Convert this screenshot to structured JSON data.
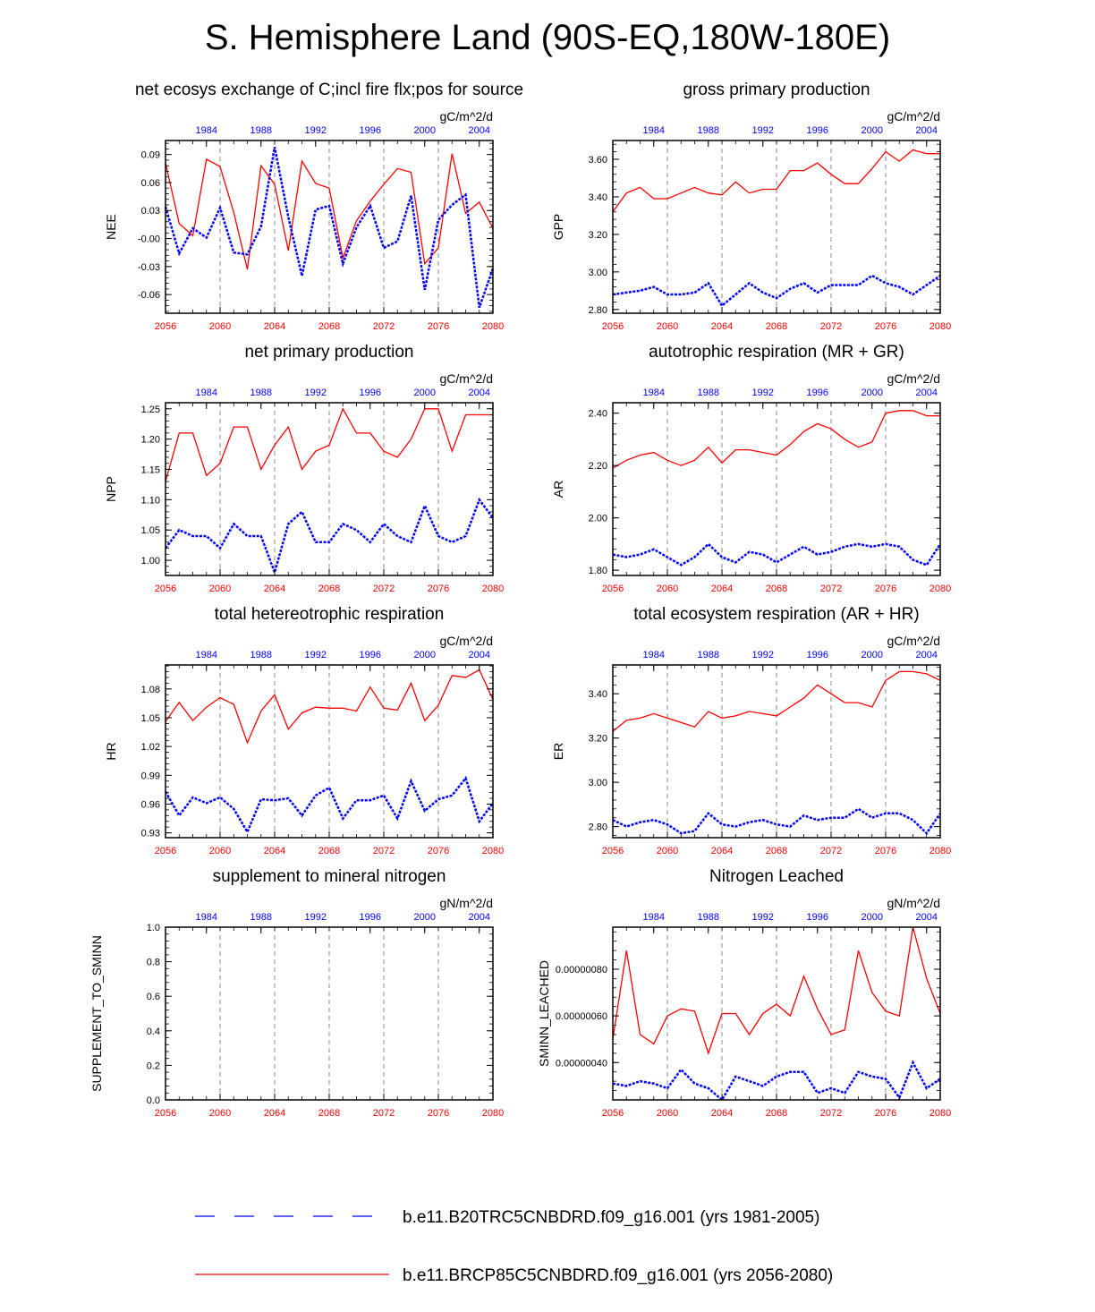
{
  "title": "S. Hemisphere Land (90S-EQ,180W-180E)",
  "colors": {
    "model1": "#0000ff",
    "model2": "#ff0000",
    "axis": "#000000",
    "gridline": "#888888"
  },
  "legend": [
    {
      "label": "b.e11.B20TRC5CNBDRD.f09_g16.001 (yrs 1981-2005)",
      "color": "#0000ff",
      "style": "dashed"
    },
    {
      "label": "b.e11.BRCP85C5CNBDRD.f09_g16.001 (yrs 2056-2080)",
      "color": "#ff0000",
      "style": "solid"
    }
  ],
  "chart_data": [
    {
      "type": "line",
      "title": "net ecosys exchange of C;incl fire flx;pos for source",
      "ylabel": "NEE",
      "units": "gC/m^2/d",
      "ylim": [
        -0.08,
        0.105
      ],
      "yticks": [
        -0.06,
        -0.03,
        0.0,
        0.03,
        0.06,
        0.09
      ],
      "ytick_labels": [
        "-0.06",
        "-0.03",
        "-0.00",
        "0.03",
        "0.06",
        "0.09"
      ],
      "xlim_bottom": [
        2056,
        2080
      ],
      "xticks_bottom": [
        "2056",
        "2060",
        "2064",
        "2068",
        "2072",
        "2076",
        "2080"
      ],
      "xticks_top": [
        "1984",
        "1988",
        "1992",
        "1996",
        "2000",
        "2004"
      ],
      "series": [
        {
          "name": "b.e11.BRCP85C5CNBDRD.f09_g16.001",
          "x_start": 2056,
          "values": [
            0.081,
            0.016,
            0.003,
            0.085,
            0.077,
            0.028,
            -0.033,
            0.078,
            0.058,
            -0.013,
            0.083,
            0.059,
            0.054,
            -0.021,
            0.019,
            0.04,
            0.058,
            0.075,
            0.071,
            -0.027,
            -0.01,
            0.091,
            0.027,
            0.039,
            0.011
          ]
        },
        {
          "name": "b.e11.B20TRC5CNBDRD.f09_g16.001",
          "x_start": 1981,
          "values": [
            0.034,
            -0.016,
            0.011,
            0.001,
            0.033,
            -0.015,
            -0.017,
            0.013,
            0.098,
            0.023,
            -0.04,
            0.031,
            0.035,
            -0.027,
            0.012,
            0.035,
            -0.01,
            -0.003,
            0.046,
            -0.055,
            0.02,
            0.036,
            0.047,
            -0.074,
            -0.032
          ]
        }
      ]
    },
    {
      "type": "line",
      "title": "gross primary production",
      "ylabel": "GPP",
      "units": "gC/m^2/d",
      "ylim": [
        2.78,
        3.7
      ],
      "yticks": [
        2.8,
        3.0,
        3.2,
        3.4,
        3.6
      ],
      "ytick_labels": [
        "2.80",
        "3.00",
        "3.20",
        "3.40",
        "3.60"
      ],
      "xlim_bottom": [
        2056,
        2080
      ],
      "xticks_bottom": [
        "2056",
        "2060",
        "2064",
        "2068",
        "2072",
        "2076",
        "2080"
      ],
      "xticks_top": [
        "1984",
        "1988",
        "1992",
        "1996",
        "2000",
        "2004"
      ],
      "series": [
        {
          "name": "b.e11.BRCP85C5CNBDRD.f09_g16.001",
          "x_start": 2056,
          "values": [
            3.32,
            3.42,
            3.45,
            3.39,
            3.39,
            3.42,
            3.45,
            3.42,
            3.41,
            3.48,
            3.42,
            3.44,
            3.44,
            3.54,
            3.54,
            3.58,
            3.52,
            3.47,
            3.47,
            3.55,
            3.64,
            3.59,
            3.65,
            3.63,
            3.63
          ]
        },
        {
          "name": "b.e11.B20TRC5CNBDRD.f09_g16.001",
          "x_start": 1981,
          "values": [
            2.88,
            2.89,
            2.9,
            2.92,
            2.88,
            2.88,
            2.89,
            2.94,
            2.82,
            2.88,
            2.94,
            2.89,
            2.86,
            2.91,
            2.94,
            2.89,
            2.93,
            2.93,
            2.93,
            2.98,
            2.94,
            2.92,
            2.88,
            2.93,
            2.98
          ]
        }
      ]
    },
    {
      "type": "line",
      "title": "net primary production",
      "ylabel": "NPP",
      "units": "gC/m^2/d",
      "ylim": [
        0.975,
        1.26
      ],
      "yticks": [
        1.0,
        1.05,
        1.1,
        1.15,
        1.2,
        1.25
      ],
      "ytick_labels": [
        "1.00",
        "1.05",
        "1.10",
        "1.15",
        "1.20",
        "1.25"
      ],
      "xlim_bottom": [
        2056,
        2080
      ],
      "xticks_bottom": [
        "2056",
        "2060",
        "2064",
        "2068",
        "2072",
        "2076",
        "2080"
      ],
      "xticks_top": [
        "1984",
        "1988",
        "1992",
        "1996",
        "2000",
        "2004"
      ],
      "series": [
        {
          "name": "b.e11.BRCP85C5CNBDRD.f09_g16.001",
          "x_start": 2056,
          "values": [
            1.13,
            1.21,
            1.21,
            1.14,
            1.16,
            1.22,
            1.22,
            1.15,
            1.19,
            1.22,
            1.15,
            1.18,
            1.19,
            1.25,
            1.21,
            1.21,
            1.18,
            1.17,
            1.2,
            1.25,
            1.25,
            1.18,
            1.24,
            1.24,
            1.24
          ]
        },
        {
          "name": "b.e11.B20TRC5CNBDRD.f09_g16.001",
          "x_start": 1981,
          "values": [
            1.02,
            1.05,
            1.04,
            1.04,
            1.02,
            1.06,
            1.04,
            1.04,
            0.98,
            1.06,
            1.08,
            1.03,
            1.03,
            1.06,
            1.05,
            1.03,
            1.06,
            1.04,
            1.03,
            1.09,
            1.04,
            1.03,
            1.04,
            1.1,
            1.07
          ]
        }
      ]
    },
    {
      "type": "line",
      "title": "autotrophic respiration (MR + GR)",
      "ylabel": "AR",
      "units": "gC/m^2/d",
      "ylim": [
        1.78,
        2.44
      ],
      "yticks": [
        1.8,
        2.0,
        2.2,
        2.4
      ],
      "ytick_labels": [
        "1.80",
        "2.00",
        "2.20",
        "2.40"
      ],
      "xlim_bottom": [
        2056,
        2080
      ],
      "xticks_bottom": [
        "2056",
        "2060",
        "2064",
        "2068",
        "2072",
        "2076",
        "2080"
      ],
      "xticks_top": [
        "1984",
        "1988",
        "1992",
        "1996",
        "2000",
        "2004"
      ],
      "series": [
        {
          "name": "b.e11.BRCP85C5CNBDRD.f09_g16.001",
          "x_start": 2056,
          "values": [
            2.19,
            2.22,
            2.24,
            2.25,
            2.22,
            2.2,
            2.22,
            2.27,
            2.21,
            2.26,
            2.26,
            2.25,
            2.24,
            2.28,
            2.33,
            2.36,
            2.34,
            2.3,
            2.27,
            2.29,
            2.4,
            2.41,
            2.41,
            2.39,
            2.39
          ]
        },
        {
          "name": "b.e11.B20TRC5CNBDRD.f09_g16.001",
          "x_start": 1981,
          "values": [
            1.86,
            1.85,
            1.86,
            1.88,
            1.85,
            1.82,
            1.85,
            1.9,
            1.85,
            1.83,
            1.87,
            1.86,
            1.83,
            1.86,
            1.89,
            1.86,
            1.87,
            1.89,
            1.9,
            1.89,
            1.9,
            1.89,
            1.84,
            1.82,
            1.9
          ]
        }
      ]
    },
    {
      "type": "line",
      "title": "total hetereotrophic respiration",
      "ylabel": "HR",
      "units": "gC/m^2/d",
      "ylim": [
        0.925,
        1.105
      ],
      "yticks": [
        0.93,
        0.96,
        0.99,
        1.02,
        1.05,
        1.08
      ],
      "ytick_labels": [
        "0.93",
        "0.96",
        "0.99",
        "1.02",
        "1.05",
        "1.08"
      ],
      "xlim_bottom": [
        2056,
        2080
      ],
      "xticks_bottom": [
        "2056",
        "2060",
        "2064",
        "2068",
        "2072",
        "2076",
        "2080"
      ],
      "xticks_top": [
        "1984",
        "1988",
        "1992",
        "1996",
        "2000",
        "2004"
      ],
      "series": [
        {
          "name": "b.e11.BRCP85C5CNBDRD.f09_g16.001",
          "x_start": 2056,
          "values": [
            1.046,
            1.066,
            1.047,
            1.061,
            1.071,
            1.064,
            1.024,
            1.057,
            1.074,
            1.038,
            1.055,
            1.061,
            1.06,
            1.06,
            1.057,
            1.082,
            1.06,
            1.058,
            1.086,
            1.047,
            1.063,
            1.094,
            1.092,
            1.1,
            1.069
          ]
        },
        {
          "name": "b.e11.B20TRC5CNBDRD.f09_g16.001",
          "x_start": 1981,
          "values": [
            0.973,
            0.948,
            0.967,
            0.961,
            0.967,
            0.955,
            0.931,
            0.965,
            0.964,
            0.966,
            0.948,
            0.969,
            0.977,
            0.945,
            0.964,
            0.964,
            0.969,
            0.945,
            0.984,
            0.953,
            0.965,
            0.969,
            0.987,
            0.942,
            0.961
          ]
        }
      ]
    },
    {
      "type": "line",
      "title": "total ecosystem respiration (AR + HR)",
      "ylabel": "ER",
      "units": "gC/m^2/d",
      "ylim": [
        2.75,
        3.53
      ],
      "yticks": [
        2.8,
        3.0,
        3.2,
        3.4
      ],
      "ytick_labels": [
        "2.80",
        "3.00",
        "3.20",
        "3.40"
      ],
      "xlim_bottom": [
        2056,
        2080
      ],
      "xticks_bottom": [
        "2056",
        "2060",
        "2064",
        "2068",
        "2072",
        "2076",
        "2080"
      ],
      "xticks_top": [
        "1984",
        "1988",
        "1992",
        "1996",
        "2000",
        "2004"
      ],
      "series": [
        {
          "name": "b.e11.BRCP85C5CNBDRD.f09_g16.001",
          "x_start": 2056,
          "values": [
            3.23,
            3.28,
            3.29,
            3.31,
            3.29,
            3.27,
            3.25,
            3.32,
            3.29,
            3.3,
            3.32,
            3.31,
            3.3,
            3.34,
            3.38,
            3.44,
            3.4,
            3.36,
            3.36,
            3.34,
            3.46,
            3.5,
            3.5,
            3.49,
            3.46
          ]
        },
        {
          "name": "b.e11.B20TRC5CNBDRD.f09_g16.001",
          "x_start": 1981,
          "values": [
            2.83,
            2.8,
            2.82,
            2.83,
            2.81,
            2.77,
            2.78,
            2.86,
            2.81,
            2.8,
            2.82,
            2.83,
            2.81,
            2.8,
            2.85,
            2.83,
            2.84,
            2.84,
            2.88,
            2.84,
            2.86,
            2.86,
            2.83,
            2.77,
            2.86
          ]
        }
      ]
    },
    {
      "type": "line",
      "title": "supplement to mineral nitrogen",
      "ylabel": "SUPPLEMENT_TO_SMINN",
      "units": "gN/m^2/d",
      "ylim": [
        0.0,
        1.0
      ],
      "yticks": [
        0.0,
        0.2,
        0.4,
        0.6,
        0.8,
        1.0
      ],
      "ytick_labels": [
        "0.0",
        "0.2",
        "0.4",
        "0.6",
        "0.8",
        "1.0"
      ],
      "xlim_bottom": [
        2056,
        2080
      ],
      "xticks_bottom": [
        "2056",
        "2060",
        "2064",
        "2068",
        "2072",
        "2076",
        "2080"
      ],
      "xticks_top": [
        "1984",
        "1988",
        "1992",
        "1996",
        "2000",
        "2004"
      ],
      "series": []
    },
    {
      "type": "line",
      "title": "Nitrogen Leached",
      "ylabel": "SMINN_LEACHED",
      "units": "gN/m^2/d",
      "ylim": [
        2.4e-07,
        9.8e-07
      ],
      "yticks": [
        4e-07,
        6e-07,
        8e-07
      ],
      "ytick_labels": [
        "0.00000040",
        "0.00000060",
        "0.00000080"
      ],
      "xlim_bottom": [
        2056,
        2080
      ],
      "xticks_bottom": [
        "2056",
        "2060",
        "2064",
        "2068",
        "2072",
        "2076",
        "2080"
      ],
      "xticks_top": [
        "1984",
        "1988",
        "1992",
        "1996",
        "2000",
        "2004"
      ],
      "series": [
        {
          "name": "b.e11.BRCP85C5CNBDRD.f09_g16.001",
          "x_start": 2056,
          "values": [
            5e-07,
            8.8e-07,
            5.2e-07,
            4.8e-07,
            6e-07,
            6.3e-07,
            6.2e-07,
            4.4e-07,
            6.1e-07,
            6.1e-07,
            5.2e-07,
            6.1e-07,
            6.5e-07,
            6e-07,
            7.7e-07,
            6.3e-07,
            5.2e-07,
            5.4e-07,
            8.8e-07,
            7e-07,
            6.2e-07,
            6e-07,
            9.8e-07,
            7.6e-07,
            6.1e-07
          ]
        },
        {
          "name": "b.e11.B20TRC5CNBDRD.f09_g16.001",
          "x_start": 1981,
          "values": [
            3.1e-07,
            3e-07,
            3.2e-07,
            3.1e-07,
            2.9e-07,
            3.7e-07,
            3.1e-07,
            2.9e-07,
            2.4e-07,
            3.4e-07,
            3.2e-07,
            3e-07,
            3.4e-07,
            3.6e-07,
            3.6e-07,
            2.7e-07,
            2.9e-07,
            2.7e-07,
            3.6e-07,
            3.4e-07,
            3.3e-07,
            2.5e-07,
            4e-07,
            2.9e-07,
            3.3e-07
          ]
        }
      ]
    }
  ]
}
